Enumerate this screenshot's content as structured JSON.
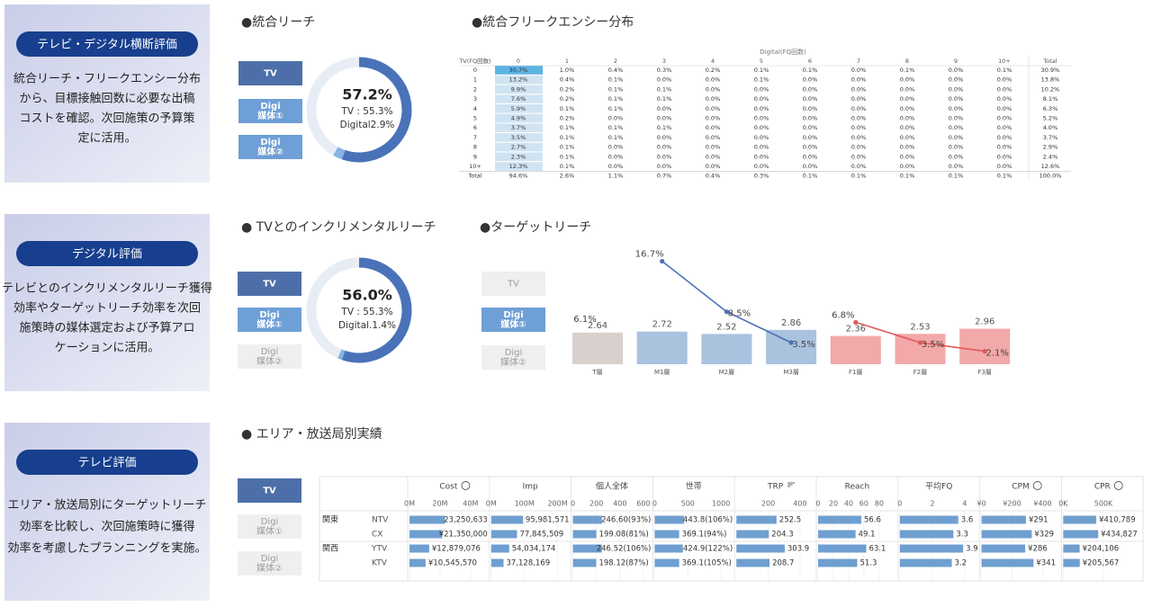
{
  "sections": [
    {
      "title": "テレビ・デジタル横断評価",
      "description": [
        "統合リーチ・フリークエンシー分布",
        "から、目標接触回数に必要な出稿",
        "コストを確認。次回施策の予算策",
        "定に活用。"
      ]
    },
    {
      "title": "デジタル評価",
      "description": [
        "テレビとのインクリメンタルリーチ獲得",
        "効率やターゲットリーチ効率を次回",
        "施策時の媒体選定および予算アロ",
        "ケーションに活用。"
      ]
    },
    {
      "title": "テレビ評価",
      "description": [
        "エリア・放送局別にターゲットリーチ",
        "効率を比較し、次回施策時に獲得",
        "効率を考慮したプランニングを実施。"
      ]
    }
  ],
  "button_groups": [
    [
      {
        "label": [
          "TV"
        ],
        "color": "#4d6fa9",
        "text_color": "#ffffff"
      },
      {
        "label": [
          "Digi",
          "媒体①"
        ],
        "color": "#6e9fd6",
        "text_color": "#ffffff"
      },
      {
        "label": [
          "Digi",
          "媒体②"
        ],
        "color": "#6e9fd6",
        "text_color": "#ffffff"
      }
    ],
    [
      {
        "label": [
          "TV"
        ],
        "color": "#4d6fa9",
        "text_color": "#ffffff"
      },
      {
        "label": [
          "Digi",
          "媒体①"
        ],
        "color": "#6e9fd6",
        "text_color": "#ffffff"
      },
      {
        "label": [
          "Digi",
          "媒体②"
        ],
        "color": "#efefef",
        "text_color": "#9a9a9a"
      }
    ],
    [
      {
        "label": [
          "TV"
        ],
        "color": "#efefef",
        "text_color": "#9a9a9a"
      },
      {
        "label": [
          "Digi",
          "媒体①"
        ],
        "color": "#6e9fd6",
        "text_color": "#ffffff"
      },
      {
        "label": [
          "Digi",
          "媒体②"
        ],
        "color": "#efefef",
        "text_color": "#9a9a9a"
      }
    ],
    [
      {
        "label": [
          "TV"
        ],
        "color": "#4d6fa9",
        "text_color": "#ffffff"
      },
      {
        "label": [
          "Digi",
          "媒体①"
        ],
        "color": "#efefef",
        "text_color": "#9a9a9a"
      },
      {
        "label": [
          "Digi",
          "媒体②"
        ],
        "color": "#efefef",
        "text_color": "#9a9a9a"
      }
    ]
  ],
  "frequency_table": {
    "title": "●統合フリークエンシー分布",
    "column_header": "Digital(FQ回数)",
    "row_header": "TV(FQ回数)",
    "columns": [
      "0",
      "1",
      "2",
      "3",
      "4",
      "5",
      "6",
      "7",
      "8",
      "9",
      "10+",
      "Total"
    ],
    "rows": [
      {
        "label": "0",
        "cells": [
          "30.7%",
          "1.0%",
          "0.4%",
          "0.3%",
          "0.2%",
          "0.1%",
          "0.1%",
          "0.0%",
          "0.1%",
          "0.0%",
          "0.1%",
          "30.9%"
        ]
      },
      {
        "label": "1",
        "cells": [
          "13.2%",
          "0.4%",
          "0.1%",
          "0.0%",
          "0.0%",
          "0.1%",
          "0.0%",
          "0.0%",
          "0.0%",
          "0.0%",
          "0.0%",
          "13.8%"
        ]
      },
      {
        "label": "2",
        "cells": [
          "9.9%",
          "0.2%",
          "0.1%",
          "0.1%",
          "0.0%",
          "0.0%",
          "0.0%",
          "0.0%",
          "0.0%",
          "0.0%",
          "0.0%",
          "10.2%"
        ]
      },
      {
        "label": "3",
        "cells": [
          "7.6%",
          "0.2%",
          "0.1%",
          "0.1%",
          "0.0%",
          "0.0%",
          "0.0%",
          "0.0%",
          "0.0%",
          "0.0%",
          "0.0%",
          "8.1%"
        ]
      },
      {
        "label": "4",
        "cells": [
          "5.9%",
          "0.1%",
          "0.1%",
          "0.0%",
          "0.0%",
          "0.0%",
          "0.0%",
          "0.0%",
          "0.0%",
          "0.0%",
          "0.0%",
          "6.3%"
        ]
      },
      {
        "label": "5",
        "cells": [
          "4.9%",
          "0.2%",
          "0.0%",
          "0.0%",
          "0.0%",
          "0.0%",
          "0.0%",
          "0.0%",
          "0.0%",
          "0.0%",
          "0.0%",
          "5.2%"
        ]
      },
      {
        "label": "6",
        "cells": [
          "3.7%",
          "0.1%",
          "0.1%",
          "0.1%",
          "0.0%",
          "0.0%",
          "0.0%",
          "0.0%",
          "0.0%",
          "0.0%",
          "0.0%",
          "4.0%"
        ]
      },
      {
        "label": "7",
        "cells": [
          "3.5%",
          "0.1%",
          "0.1%",
          "0.0%",
          "0.0%",
          "0.0%",
          "0.0%",
          "0.0%",
          "0.0%",
          "0.0%",
          "0.0%",
          "3.7%"
        ]
      },
      {
        "label": "8",
        "cells": [
          "2.7%",
          "0.1%",
          "0.0%",
          "0.0%",
          "0.0%",
          "0.0%",
          "0.0%",
          "0.0%",
          "0.0%",
          "0.0%",
          "0.0%",
          "2.9%"
        ]
      },
      {
        "label": "9",
        "cells": [
          "2.3%",
          "0.1%",
          "0.0%",
          "0.0%",
          "0.0%",
          "0.0%",
          "0.0%",
          "0.0%",
          "0.0%",
          "0.0%",
          "0.0%",
          "2.4%"
        ]
      },
      {
        "label": "10+",
        "cells": [
          "12.3%",
          "0.1%",
          "0.0%",
          "0.0%",
          "0.0%",
          "0.0%",
          "0.0%",
          "0.0%",
          "0.0%",
          "0.0%",
          "0.0%",
          "12.6%"
        ]
      },
      {
        "label": "Total",
        "cells": [
          "94.6%",
          "2.6%",
          "1.1%",
          "0.7%",
          "0.4%",
          "0.3%",
          "0.1%",
          "0.1%",
          "0.1%",
          "0.1%",
          "0.1%",
          "100.0%"
        ]
      }
    ]
  },
  "chart_data": [
    {
      "type": "donut",
      "title": "●統合リーチ",
      "total": 57.2,
      "total_label": "57.2%",
      "values": [
        55.3,
        2.9
      ],
      "value_labels": [
        "TV : 55.3%",
        "Digital2.9%"
      ],
      "colors": [
        "#4a72b8",
        "#89b4e3"
      ]
    },
    {
      "type": "donut",
      "title": "● TVとのインクリメンタルリーチ",
      "total": 56.0,
      "total_label": "56.0%",
      "values": [
        55.3,
        1.4
      ],
      "value_labels": [
        "TV : 55.3%",
        "Digital.1.4%"
      ],
      "colors": [
        "#4a72b8",
        "#89b4e3"
      ]
    },
    {
      "type": "bar_line",
      "title": "●ターゲットリーチ",
      "categories": [
        "T層",
        "M1層",
        "M2層",
        "M3層",
        "F1層",
        "F2層",
        "F3層"
      ],
      "values": [
        2.64,
        2.72,
        2.52,
        2.86,
        2.36,
        2.53,
        2.96
      ],
      "colors": [
        "#d9d0cd",
        "#a9c2de",
        "#a9c2de",
        "#a9c2de",
        "#f3a8a9",
        "#f3a8a9",
        "#f3a8a9"
      ],
      "ylim": [
        0,
        9
      ],
      "y2lim": [
        0,
        17.5
      ],
      "series": [
        {
          "color": "#8f8f8f",
          "axis": "y2",
          "values": [
            6.1,
            null,
            null,
            null,
            null,
            null,
            null
          ],
          "value_labels": [
            "6.1%",
            null,
            null,
            null,
            null,
            null,
            null
          ]
        },
        {
          "color": "#4a72b8",
          "axis": "y2",
          "values": [
            null,
            16.7,
            8.5,
            3.5,
            null,
            null,
            null
          ],
          "value_labels": [
            null,
            "16.7%",
            "8.5%",
            "3.5%",
            null,
            null,
            null
          ]
        },
        {
          "color": "#e05a5a",
          "axis": "y2",
          "values": [
            null,
            null,
            null,
            null,
            6.8,
            3.5,
            2.1
          ],
          "value_labels": [
            null,
            null,
            null,
            null,
            "6.8%",
            "3.5%",
            "2.1%"
          ]
        }
      ]
    },
    {
      "type": "bar_table",
      "title": "● エリア・放送局別実績",
      "groups": [
        "関東",
        null,
        "関西",
        null
      ],
      "categories": [
        "NTV",
        "CX",
        "YTV",
        "KTV"
      ],
      "color": "#6f9fd0",
      "columns": [
        {
          "name": "Cost",
          "xlim": [
            0,
            50000000
          ],
          "ticks": [
            {
              "value": 0,
              "label": "0M"
            },
            {
              "value": 20000000,
              "label": "20M"
            },
            {
              "value": 40000000,
              "label": "40M"
            }
          ],
          "values": [
            23250633,
            21350000,
            12879076,
            10545570
          ],
          "value_labels": [
            "23,250,633",
            "¥21,350,000",
            "¥12,879,076",
            "¥10,545,570"
          ]
        },
        {
          "name": "Imp",
          "xlim": [
            0,
            230000000
          ],
          "ticks": [
            {
              "value": 0,
              "label": "0M"
            },
            {
              "value": 100000000,
              "label": "100M"
            },
            {
              "value": 200000000,
              "label": "200M"
            }
          ],
          "values": [
            95981571,
            77845509,
            54034174,
            37128169
          ],
          "value_labels": [
            "95,981,571",
            "77,845,509",
            "54,034,174",
            "37,128,169"
          ]
        },
        {
          "name": "個人全体",
          "xlim": [
            0,
            650
          ],
          "ticks": [
            0,
            200,
            400,
            600
          ],
          "values": [
            246.6,
            199.08,
            246.52,
            198.12
          ],
          "value_labels": [
            "246.60(93%)",
            "199.08(81%)",
            "246.52(106%)",
            "198.12(87%)"
          ]
        },
        {
          "name": "世帯",
          "xlim": [
            0,
            1150
          ],
          "ticks": [
            0,
            500,
            1000
          ],
          "values": [
            443.8,
            369.1,
            424.9,
            369.1
          ],
          "value_labels": [
            "443.8(106%)",
            "369.1(94%)",
            "424.9(122%)",
            "369.1(105%)"
          ]
        },
        {
          "name": "TRP",
          "xlim": [
            0,
            480
          ],
          "ticks": [
            200,
            400
          ],
          "values": [
            252.5,
            204.3,
            303.9,
            208.7
          ]
        },
        {
          "name": "Reach",
          "xlim": [
            0,
            100
          ],
          "ticks": [
            0,
            20,
            40,
            60,
            80
          ],
          "values": [
            56.6,
            49.1,
            63.1,
            51.3
          ]
        },
        {
          "name": "平均FQ",
          "xlim": [
            0,
            4.7
          ],
          "ticks": [
            0,
            2,
            4
          ],
          "values": [
            3.6,
            3.3,
            3.9,
            3.2
          ]
        },
        {
          "name": "CPM",
          "xlim": [
            0,
            500
          ],
          "ticks": [
            {
              "value": 0,
              "label": "¥0"
            },
            {
              "value": 200,
              "label": "¥200"
            },
            {
              "value": 400,
              "label": "¥400"
            }
          ],
          "values": [
            291,
            329,
            286,
            341
          ],
          "value_labels": [
            "¥291",
            "¥329",
            "¥286",
            "¥341"
          ]
        },
        {
          "name": "CPR",
          "xlim": [
            0,
            950000
          ],
          "ticks": [
            {
              "value": 0,
              "label": "0K"
            },
            {
              "value": 500000,
              "label": "500K"
            }
          ],
          "values": [
            410789,
            434827,
            204106,
            205567
          ],
          "value_labels": [
            "¥410,789",
            "¥434,827",
            "¥204,106",
            "¥205,567"
          ]
        }
      ]
    }
  ]
}
